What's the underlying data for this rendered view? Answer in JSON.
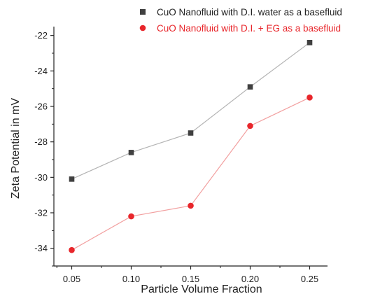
{
  "chart_data": {
    "type": "line",
    "xlabel": "Particle Volume Fraction",
    "ylabel": "Zeta Potential in mV",
    "x": [
      0.05,
      0.1,
      0.15,
      0.2,
      0.25
    ],
    "x_tick_labels": [
      "0.05",
      "0.10",
      "0.15",
      "0.20",
      "0.25"
    ],
    "y_tick_labels": [
      "-22",
      "-24",
      "-26",
      "-28",
      "-30",
      "-32",
      "-34"
    ],
    "ylim": [
      -35,
      -21.5
    ],
    "grid": false,
    "legend_position": "top-right",
    "series": [
      {
        "name": "CuO Nanofluid with D.I. water as a basefluid",
        "marker": "square",
        "color": "#404040",
        "line_color": "#b4b4b4",
        "values": [
          -30.1,
          -28.6,
          -27.5,
          -24.9,
          -22.4
        ]
      },
      {
        "name": "CuO Nanofluid with D.I. + EG as a basefluid",
        "marker": "circle",
        "color": "#e8262b",
        "line_color": "#f2a0a0",
        "values": [
          -34.1,
          -32.2,
          -31.6,
          -27.1,
          -25.5
        ]
      }
    ]
  }
}
